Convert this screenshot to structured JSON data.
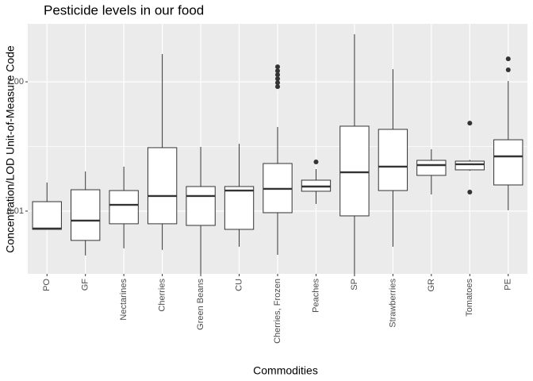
{
  "chart_data": {
    "type": "box",
    "title": "Pesticide levels in our food",
    "x_label": "Commodities",
    "y_label": "Concentration/LOD Unit-of-Measure Code",
    "log_y": true,
    "grid": true,
    "ylim": [
      0.00107,
      7.9
    ],
    "yticks": [
      {
        "value": 0.01,
        "label": "0.01"
      },
      {
        "value": 1,
        "label": "1.00"
      }
    ],
    "minor_yticks": [
      0.1
    ],
    "categories": [
      "PO",
      "GF",
      "Nectarines",
      "Cherries",
      "Green Beans",
      "CU",
      "Cherries, Frozen",
      "Peaches",
      "SP",
      "Strawberries",
      "GR",
      "Tomatoes",
      "PE"
    ],
    "boxes": [
      {
        "min": 0.00522,
        "q1": 0.00522,
        "median": 0.00537,
        "q3": 0.014,
        "max": 0.0277,
        "outliers": []
      },
      {
        "min": 0.00206,
        "q1": 0.00352,
        "median": 0.00713,
        "q3": 0.0214,
        "max": 0.041,
        "outliers": []
      },
      {
        "min": 0.00265,
        "q1": 0.00637,
        "median": 0.0125,
        "q3": 0.0208,
        "max": 0.0487,
        "outliers": []
      },
      {
        "min": 0.00251,
        "q1": 0.00637,
        "median": 0.0171,
        "q3": 0.0959,
        "max": 2.69,
        "outliers": []
      },
      {
        "min": 0.00107,
        "q1": 0.00601,
        "median": 0.0171,
        "q3": 0.024,
        "max": 0.0986,
        "outliers": []
      },
      {
        "min": 0.00281,
        "q1": 0.00522,
        "median": 0.0208,
        "q3": 0.024,
        "max": 0.11,
        "outliers": []
      },
      {
        "min": 0.00211,
        "q1": 0.00945,
        "median": 0.0221,
        "q3": 0.0545,
        "max": 0.2,
        "outliers": [
          0.844,
          0.972,
          1.12,
          1.29,
          1.48,
          1.71
        ]
      },
      {
        "min": 0.0129,
        "q1": 0.0203,
        "median": 0.024,
        "q3": 0.0301,
        "max": 0.0447,
        "outliers": [
          0.0577
        ]
      },
      {
        "min": 0.00107,
        "q1": 0.00844,
        "median": 0.0399,
        "q3": 0.206,
        "max": 5.45,
        "outliers": []
      },
      {
        "min": 0.00281,
        "q1": 0.0208,
        "median": 0.0487,
        "q3": 0.184,
        "max": 1.57,
        "outliers": []
      },
      {
        "min": 0.0181,
        "q1": 0.0357,
        "median": 0.0515,
        "q3": 0.061,
        "max": 0.0906,
        "outliers": []
      },
      {
        "min": 0.042,
        "q1": 0.0435,
        "median": 0.053,
        "q3": 0.0593,
        "max": 0.062,
        "outliers": [
          0.0197,
          0.23
        ]
      },
      {
        "min": 0.0103,
        "q1": 0.0254,
        "median": 0.0703,
        "q3": 0.127,
        "max": 1.03,
        "outliers": [
          1.53,
          2.27
        ]
      }
    ]
  }
}
